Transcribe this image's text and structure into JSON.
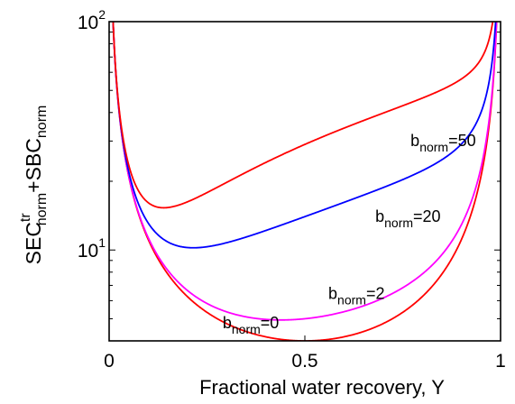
{
  "chart_data": {
    "type": "line",
    "xlabel": "Fractional water recovery, Y",
    "ylabel_parts": {
      "a": "SEC",
      "a_sup": "tr",
      "a_sub": "norm",
      "b": "+SBC",
      "b_sub": "norm"
    },
    "xlim": [
      0,
      1
    ],
    "ylim": [
      4,
      100
    ],
    "yscale": "log",
    "grid": false,
    "x_ticks": [
      {
        "value": 0,
        "label": "0"
      },
      {
        "value": 0.5,
        "label": "0.5"
      },
      {
        "value": 1,
        "label": "1"
      }
    ],
    "y_ticks": [
      {
        "value": 10,
        "label": "10",
        "exp": "1"
      },
      {
        "value": 100,
        "label": "10",
        "exp": "2"
      }
    ],
    "series": [
      {
        "b": 0,
        "color": "#ff0000",
        "annotation": {
          "main": "b",
          "sub": "norm",
          "suffix": "=0",
          "x": 0.29,
          "y": 4.55
        }
      },
      {
        "b": 2,
        "color": "#ff00ff",
        "annotation": {
          "main": "b",
          "sub": "norm",
          "suffix": "=2",
          "x": 0.56,
          "y": 6.1
        }
      },
      {
        "b": 20,
        "color": "#0000ff",
        "annotation": {
          "main": "b",
          "sub": "norm",
          "suffix": "=20",
          "x": 0.68,
          "y": 13.3
        }
      },
      {
        "b": 50,
        "color": "#ff0000",
        "annotation": {
          "main": "b",
          "sub": "norm",
          "suffix": "=50",
          "x": 0.77,
          "y": 28.5
        }
      }
    ]
  }
}
